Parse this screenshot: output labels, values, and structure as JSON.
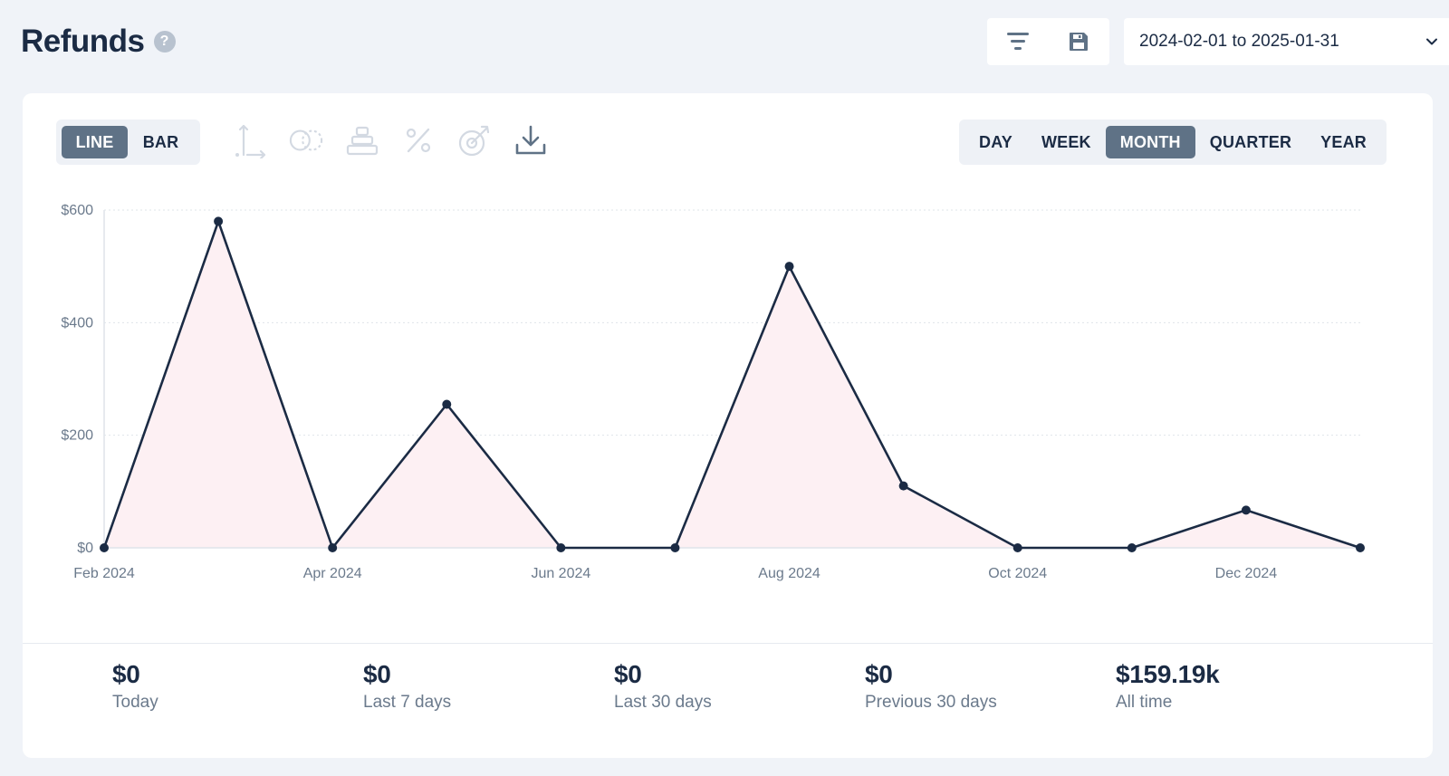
{
  "header": {
    "title": "Refunds",
    "help_icon": "question-circle-icon",
    "toolbar": {
      "filter_icon": "filter-lines-icon",
      "save_icon": "floppy-disk-icon"
    },
    "date_range": "2024-02-01 to 2025-01-31"
  },
  "chart_controls": {
    "chart_types": [
      {
        "label": "LINE",
        "active": true
      },
      {
        "label": "BAR",
        "active": false
      }
    ],
    "tool_icons": [
      "axis-icon",
      "compare-circles-icon",
      "stack-icon",
      "percent-icon",
      "target-icon",
      "download-icon"
    ],
    "periods": [
      {
        "label": "DAY",
        "active": false
      },
      {
        "label": "WEEK",
        "active": false
      },
      {
        "label": "MONTH",
        "active": true
      },
      {
        "label": "QUARTER",
        "active": false
      },
      {
        "label": "YEAR",
        "active": false
      }
    ]
  },
  "chart_data": {
    "type": "area",
    "x": [
      "2024-02",
      "2024-03",
      "2024-04",
      "2024-05",
      "2024-06",
      "2024-07",
      "2024-08",
      "2024-09",
      "2024-10",
      "2024-11",
      "2024-12",
      "2025-01"
    ],
    "x_tick_labels": [
      "Feb 2024",
      "Apr 2024",
      "Jun 2024",
      "Aug 2024",
      "Oct 2024",
      "Dec 2024"
    ],
    "values": [
      0,
      580,
      0,
      255,
      0,
      0,
      500,
      110,
      0,
      0,
      67,
      0
    ],
    "y_ticks": [
      "$0",
      "$200",
      "$400",
      "$600"
    ],
    "ylim": [
      0,
      600
    ],
    "grid": true,
    "line_color": "#1b2b44",
    "fill_color": "#fdf0f3"
  },
  "stats": [
    {
      "value": "$0",
      "label": "Today"
    },
    {
      "value": "$0",
      "label": "Last 7 days"
    },
    {
      "value": "$0",
      "label": "Last 30 days"
    },
    {
      "value": "$0",
      "label": "Previous 30 days"
    },
    {
      "value": "$159.19k",
      "label": "All time"
    }
  ]
}
